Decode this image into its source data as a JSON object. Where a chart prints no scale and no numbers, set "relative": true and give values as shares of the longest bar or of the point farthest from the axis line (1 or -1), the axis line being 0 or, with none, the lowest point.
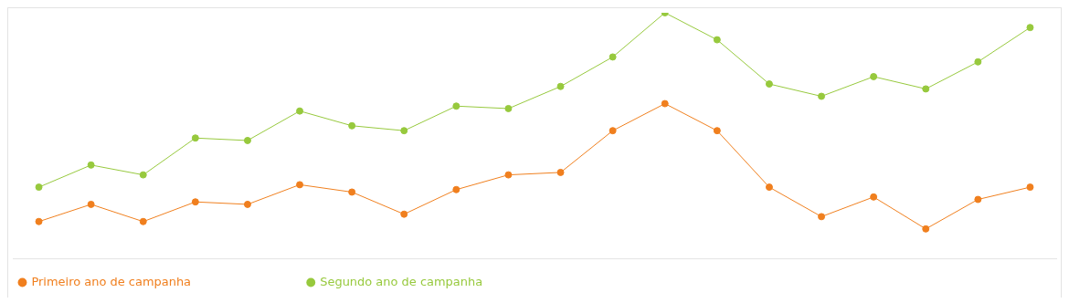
{
  "chart_data": {
    "type": "line",
    "relative": true,
    "categories": [
      null,
      null,
      null,
      null,
      null,
      null,
      null,
      null,
      null,
      null,
      null,
      null,
      null,
      null,
      null,
      null,
      null,
      null,
      null,
      null
    ],
    "legend": "bottom left",
    "marker": "circle",
    "series": [
      {
        "name": "Primeiro ano de campanha",
        "color": "#f07f1e",
        "values": [
          0.15,
          0.22,
          0.15,
          0.23,
          0.22,
          0.3,
          0.27,
          0.18,
          0.28,
          0.34,
          0.35,
          0.52,
          0.63,
          0.52,
          0.29,
          0.17,
          0.25,
          0.12,
          0.24,
          0.29
        ]
      },
      {
        "name": "Segundo ano de campanha",
        "color": "#97c93d",
        "values": [
          0.29,
          0.38,
          0.34,
          0.49,
          0.48,
          0.6,
          0.54,
          0.52,
          0.62,
          0.61,
          0.7,
          0.82,
          1,
          0.89,
          0.71,
          0.66,
          0.74,
          0.69,
          0.8,
          0.94
        ]
      }
    ]
  }
}
